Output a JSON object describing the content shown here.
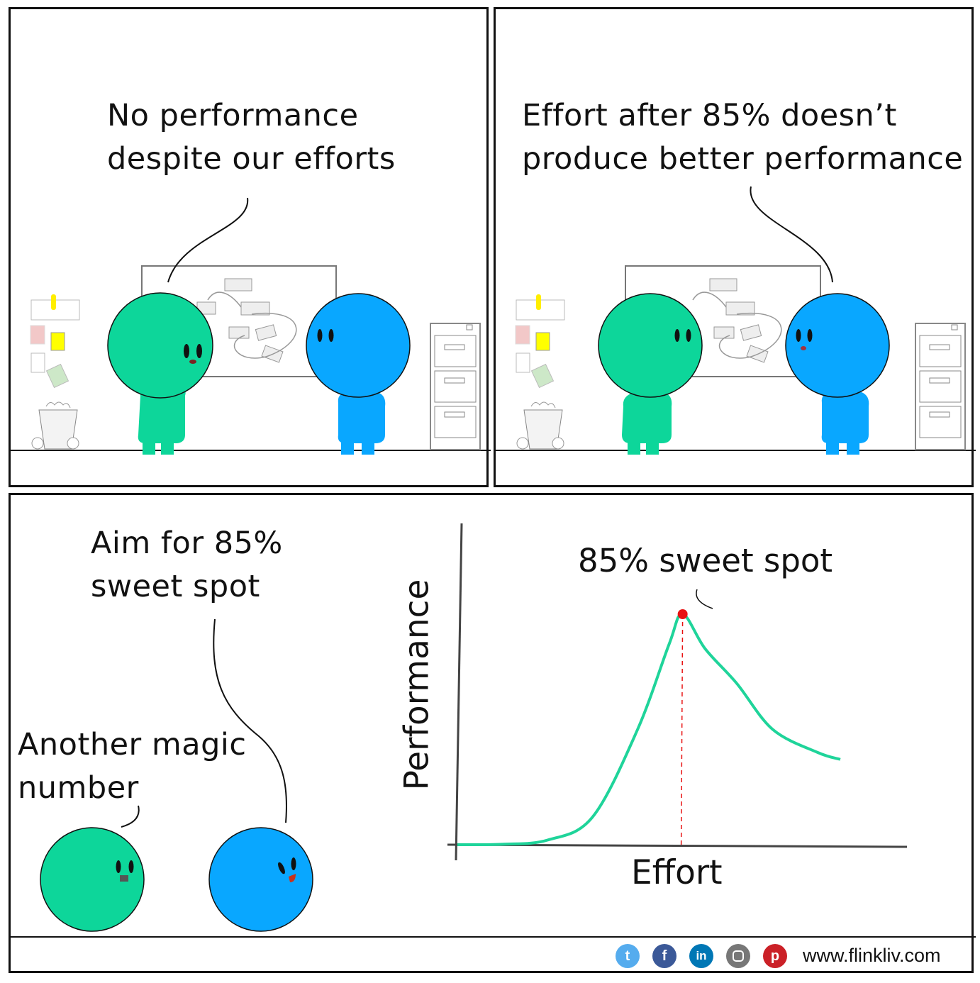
{
  "panel1": {
    "speech": "No performance\ndespite our efforts"
  },
  "panel2": {
    "speech": "Effort after 85% doesn’t\nproduce better performance"
  },
  "panel3": {
    "speech_blue": "Aim for 85%\nsweet spot",
    "speech_green": "Another magic\nnumber"
  },
  "chart_data": {
    "type": "line",
    "xlabel": "Effort",
    "ylabel": "Performance",
    "annotation": "85% sweet spot",
    "peak_marker_color": "#e81212",
    "line_color": "#1fd49a",
    "series": [
      {
        "name": "",
        "points": [
          [
            0,
            0
          ],
          [
            10,
            0.2
          ],
          [
            20,
            2
          ],
          [
            30,
            12
          ],
          [
            40,
            50
          ],
          [
            47,
            87
          ],
          [
            50,
            100
          ],
          [
            55,
            85
          ],
          [
            62,
            70
          ],
          [
            70,
            50
          ],
          [
            80,
            40
          ],
          [
            85,
            37
          ]
        ]
      }
    ],
    "peak": {
      "x": 50,
      "y": 100
    },
    "axes_ticks": "none",
    "grid": false
  },
  "colors": {
    "green_character": "#0dd69a",
    "blue_character": "#09a7ff",
    "sticky_yellow": "#ffff00",
    "sticky_pink": "#f2c8c8",
    "sticky_green": "#cde8c8"
  },
  "footer": {
    "url": "www.flinkliv.com",
    "icons": [
      "twitter-icon",
      "facebook-icon",
      "linkedin-icon",
      "instagram-icon",
      "pinterest-icon"
    ],
    "icon_colors": [
      "#55acee",
      "#3b5998",
      "#0077b5",
      "#777777",
      "#cb2027"
    ]
  }
}
